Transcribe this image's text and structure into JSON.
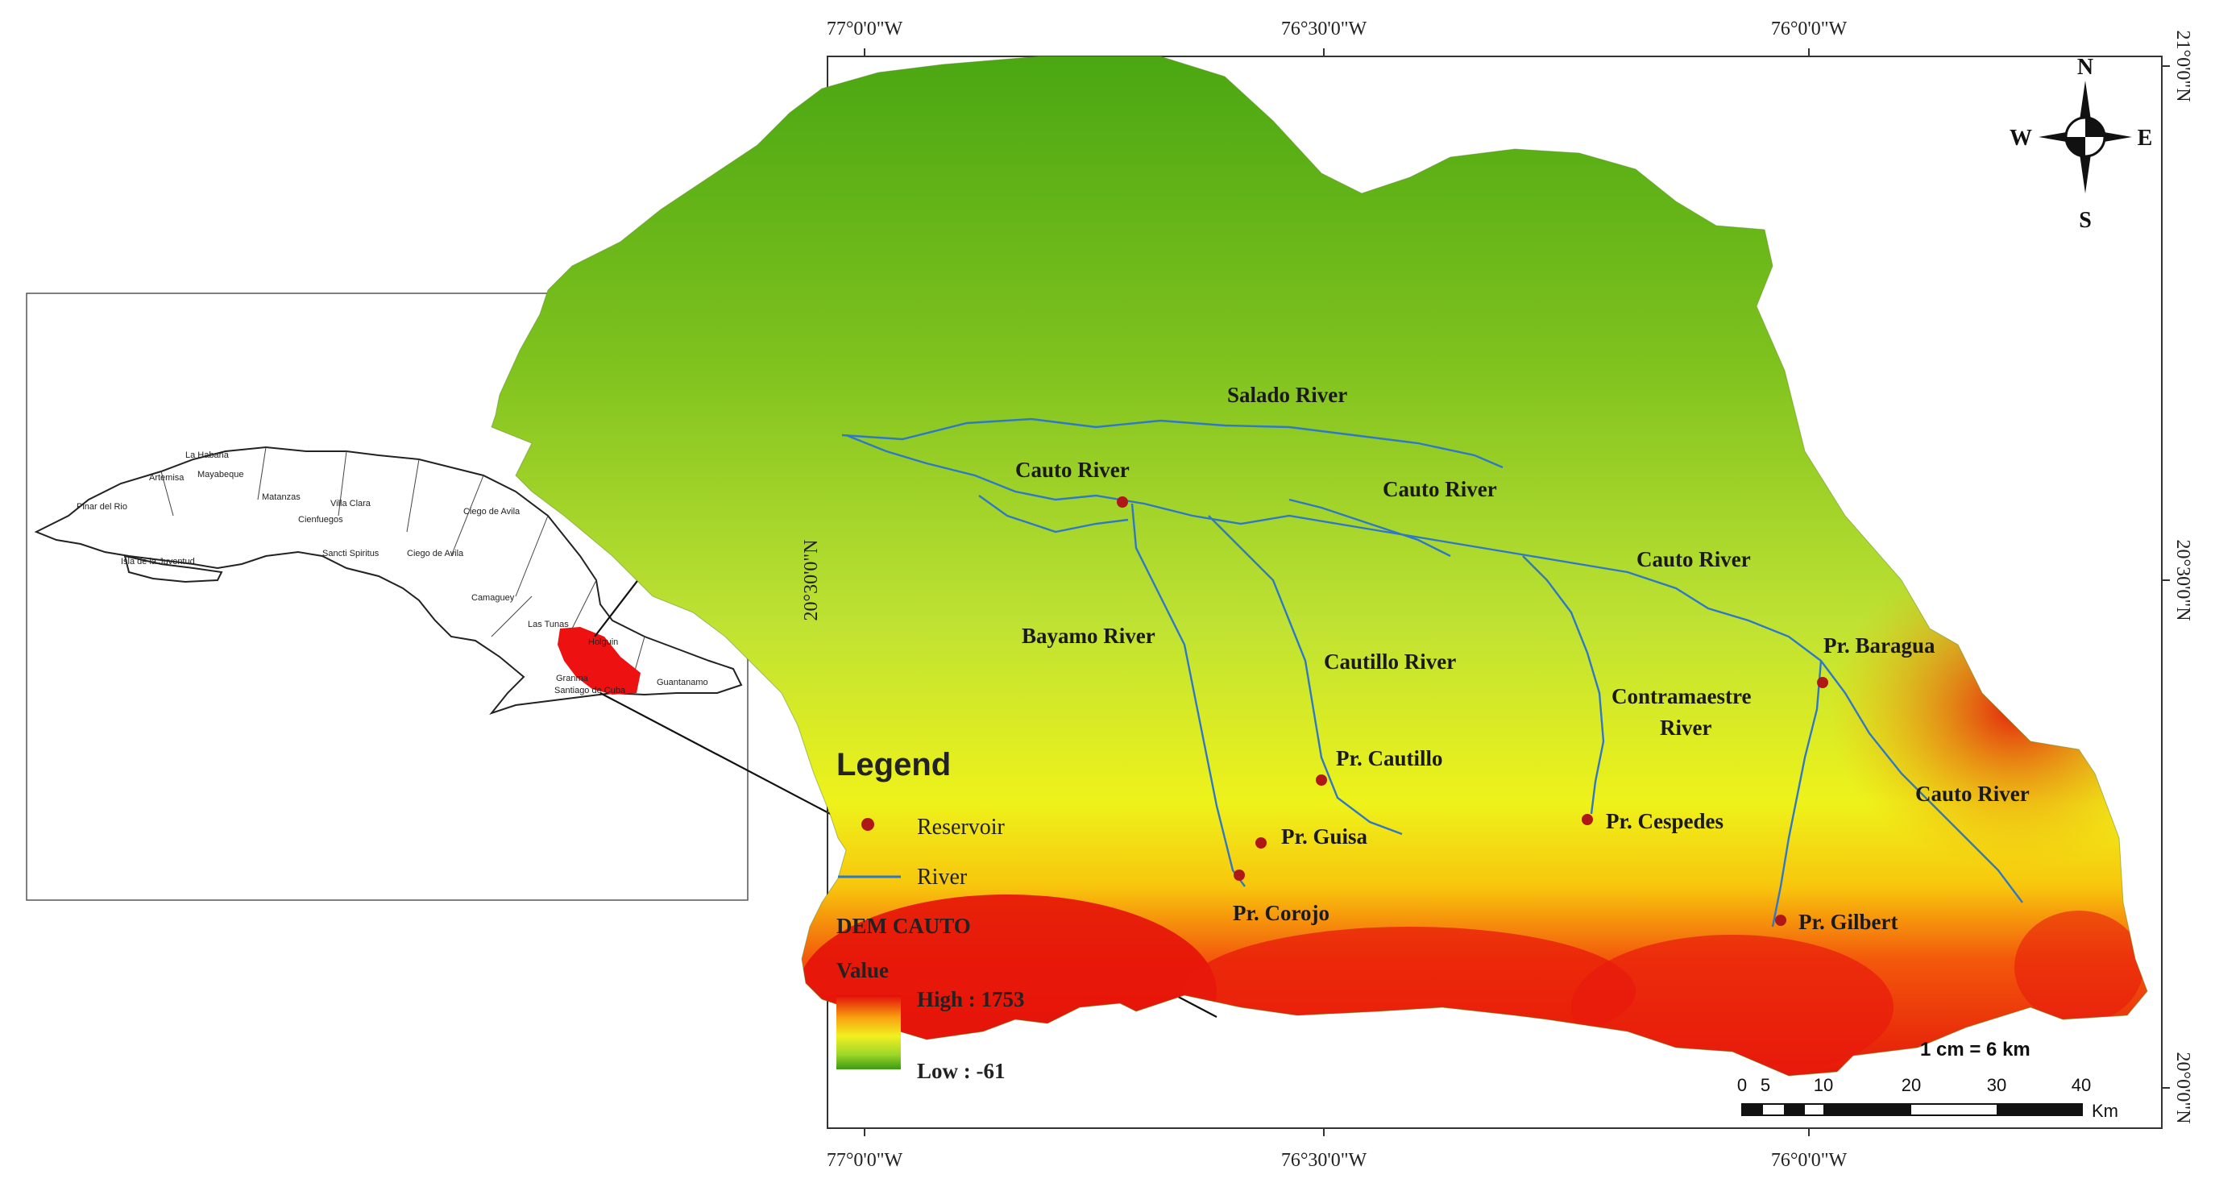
{
  "coordinates": {
    "top": [
      "77°0'0\"W",
      "76°30'0\"W",
      "76°0'0\"W"
    ],
    "bottom": [
      "77°0'0\"W",
      "76°30'0\"W",
      "76°0'0\"W"
    ],
    "left": [
      "20°30'0\"N"
    ],
    "right": [
      "21°0'0\"N",
      "20°30'0\"N",
      "20°0'0\"N"
    ]
  },
  "compass": {
    "n": "N",
    "s": "S",
    "e": "E",
    "w": "W"
  },
  "inset": {
    "provinces": [
      "La Habana",
      "Artemisa",
      "Mayabeque",
      "Pinar del Rio",
      "Matanzas",
      "Villa Clara",
      "Cienfuegos",
      "Ciego de Avila",
      "Isla de la Juventud",
      "Sancti Spiritus",
      "Ciego de Avila",
      "Camaguey",
      "Las Tunas",
      "Holguin",
      "Granma",
      "Santiago de Cuba",
      "Guantanamo"
    ]
  },
  "rivers": [
    "Salado River",
    "Cauto River",
    "Cauto River",
    "Cauto River",
    "Bayamo River",
    "Cautillo River",
    "Contramaestre",
    "River",
    "Cauto River"
  ],
  "reservoirs": [
    "Pr. Baragua",
    "Pr. Cautillo",
    "Pr. Cespedes",
    "Pr. Guisa",
    "Pr. Corojo",
    "Pr. Gilbert"
  ],
  "legend": {
    "title": "Legend",
    "reservoir": "Reservoir",
    "river": "River",
    "dem_title": "DEM CAUTO",
    "value_label": "Value",
    "high": "High : 1753",
    "low": "Low : -61"
  },
  "scale": {
    "text": "1 cm = 6 km",
    "ticks": [
      "0",
      "2.5",
      "5",
      "10",
      "20",
      "30",
      "40"
    ],
    "unit": "Km"
  },
  "colors": {
    "high": "#e8120a",
    "mid": "#f5f000",
    "low": "#3a9a12",
    "river": "#2f78c8",
    "reservoir": "#b01818",
    "inset_highlight": "#ee1111"
  }
}
